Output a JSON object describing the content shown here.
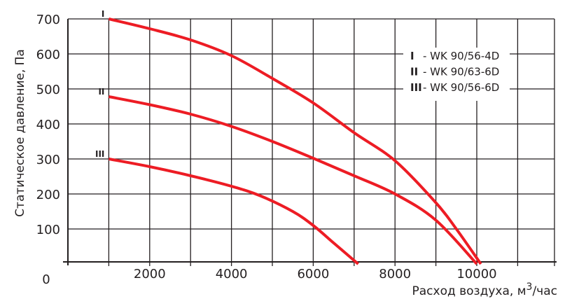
{
  "chart_data": {
    "type": "line",
    "title": "",
    "xlabel": "Расход воздуха, м",
    "xlabel_sup": "3",
    "xlabel_suffix": "/час",
    "ylabel": "Статическое давление, Па",
    "xlim": [
      0,
      11900
    ],
    "ylim": [
      0,
      700
    ],
    "grid": true,
    "x_ticks": [
      2000,
      4000,
      6000,
      8000,
      10000
    ],
    "x_tick_labels": [
      "2000",
      "4000",
      "6000",
      "8000",
      "10000"
    ],
    "y_ticks": [
      100,
      200,
      300,
      400,
      500,
      600,
      700
    ],
    "y_tick_labels": [
      "100",
      "200",
      "300",
      "400",
      "500",
      "600",
      "700"
    ],
    "origin_label": "0",
    "line_color": "#ed1c24",
    "legend_position": "top-right",
    "series": [
      {
        "name": "I",
        "legend": "- WK 90/56-4D",
        "x": [
          1000,
          2000,
          3000,
          4000,
          5000,
          6000,
          7000,
          8000,
          9000,
          9500,
          10100
        ],
        "y": [
          700,
          672,
          640,
          595,
          530,
          460,
          375,
          295,
          175,
          100,
          0
        ]
      },
      {
        "name": "II",
        "legend": "- WK 90/63-6D",
        "x": [
          1000,
          2000,
          3000,
          4000,
          5000,
          6000,
          7000,
          8000,
          9000,
          10000
        ],
        "y": [
          478,
          455,
          428,
          393,
          350,
          302,
          252,
          200,
          125,
          0
        ]
      },
      {
        "name": "III",
        "legend": "- WK 90/56-6D",
        "x": [
          1000,
          2000,
          3000,
          4000,
          4700,
          5500,
          6000,
          6500,
          7100
        ],
        "y": [
          300,
          278,
          252,
          222,
          195,
          150,
          110,
          60,
          0
        ]
      }
    ]
  }
}
